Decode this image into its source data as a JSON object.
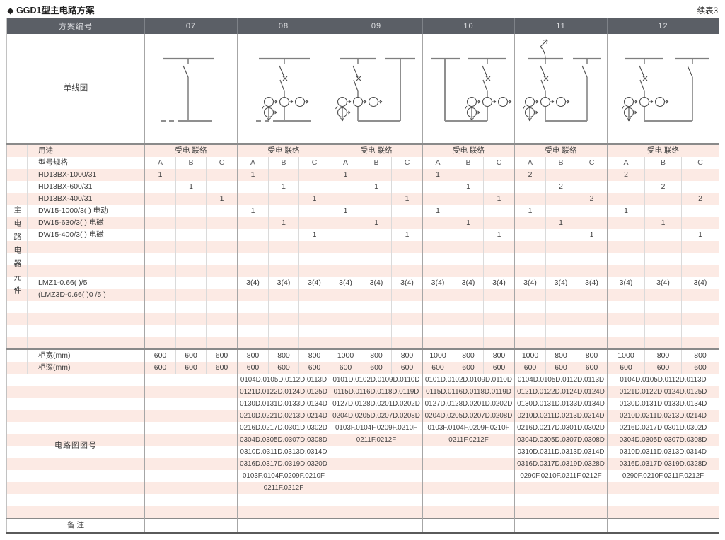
{
  "page": {
    "title": "◆ GGD1型主电路方案",
    "continuation": "续表3"
  },
  "colors": {
    "band": "#fceae4",
    "header_bg": "#5b5f66",
    "rule": "#8a8a8a"
  },
  "header": {
    "scheme_label": "方案编号",
    "schemes": [
      "07",
      "08",
      "09",
      "10",
      "11",
      "12"
    ]
  },
  "diagram_row": {
    "label": "单线图"
  },
  "usage_row": {
    "label": "用途",
    "value": "受电 联络"
  },
  "spec_row": {
    "label": "型号规格",
    "sub_columns": [
      "A",
      "B",
      "C"
    ]
  },
  "side_label": "主电路电器元件",
  "component_rows": [
    {
      "label": "HD13BX-1000/31",
      "values": [
        "1",
        "",
        "",
        "1",
        "",
        "",
        "1",
        "",
        "",
        "1",
        "",
        "",
        "2",
        "",
        "",
        "2",
        "",
        ""
      ]
    },
    {
      "label": "HD13BX-600/31",
      "values": [
        "",
        "1",
        "",
        "",
        "1",
        "",
        "",
        "1",
        "",
        "",
        "1",
        "",
        "",
        "2",
        "",
        "",
        "2",
        ""
      ]
    },
    {
      "label": "HD13BX-400/31",
      "values": [
        "",
        "",
        "1",
        "",
        "",
        "1",
        "",
        "",
        "1",
        "",
        "",
        "1",
        "",
        "",
        "2",
        "",
        "",
        "2"
      ]
    },
    {
      "label": "DW15-1000/3( )  电动",
      "values": [
        "",
        "",
        "",
        "1",
        "",
        "",
        "1",
        "",
        "",
        "1",
        "",
        "",
        "1",
        "",
        "",
        "1",
        "",
        ""
      ]
    },
    {
      "label": "DW15-630/3( )  电磁",
      "values": [
        "",
        "",
        "",
        "",
        "1",
        "",
        "",
        "1",
        "",
        "",
        "1",
        "",
        "",
        "1",
        "",
        "",
        "1",
        ""
      ]
    },
    {
      "label": "DW15-400/3( )  电磁",
      "values": [
        "",
        "",
        "",
        "",
        "",
        "1",
        "",
        "",
        "1",
        "",
        "",
        "1",
        "",
        "",
        "1",
        "",
        "",
        "1"
      ]
    },
    {
      "label": "",
      "values": []
    },
    {
      "label": "",
      "values": []
    },
    {
      "label": "",
      "values": []
    },
    {
      "label": "LMZ1-0.66( )/5",
      "values": [
        "",
        "",
        "",
        "3(4)",
        "3(4)",
        "3(4)",
        "3(4)",
        "3(4)",
        "3(4)",
        "3(4)",
        "3(4)",
        "3(4)",
        "3(4)",
        "3(4)",
        "3(4)",
        "3(4)",
        "3(4)",
        "3(4)"
      ]
    },
    {
      "label": "(LMZ3D-0.66( )0 /5 )",
      "values": []
    },
    {
      "label": "",
      "values": []
    },
    {
      "label": "",
      "values": []
    },
    {
      "label": "",
      "values": []
    },
    {
      "label": "",
      "values": []
    }
  ],
  "cabinet_rows": [
    {
      "label": "柜宽(mm)",
      "values": [
        "600",
        "600",
        "600",
        "800",
        "800",
        "800",
        "1000",
        "800",
        "800",
        "1000",
        "800",
        "800",
        "1000",
        "800",
        "800",
        "1000",
        "800",
        "800"
      ]
    },
    {
      "label": "柜深(mm)",
      "values": [
        "600",
        "600",
        "600",
        "600",
        "600",
        "600",
        "600",
        "600",
        "600",
        "600",
        "600",
        "600",
        "600",
        "600",
        "600",
        "600",
        "600",
        "600"
      ]
    }
  ],
  "diagram_numbers": {
    "label": "电路图图号",
    "schemes": {
      "07": [],
      "08": [
        "0104D.0105D.0112D.0113D",
        "0121D.0122D.0124D.0125D",
        "0130D.0131D.0133D.0134D",
        "0210D.0221D.0213D.0214D",
        "0216D.0217D.0301D.0302D",
        "0304D.0305D.0307D.0308D",
        "0310D.0311D.0313D.0314D",
        "0316D.0317D.0319D.0320D",
        "0103F.0104F.0209F.0210F",
        "0211F.0212F"
      ],
      "09": [
        "0101D.0102D.0109D.0110D",
        "0115D.0116D.0118D.0119D",
        "0127D.0128D.0201D.0202D",
        "0204D.0205D.0207D.0208D",
        "0103F.0104F.0209F.0210F",
        "0211F.0212F"
      ],
      "10": [
        "0101D.0102D.0109D.0110D",
        "0115D.0116D.0118D.0119D",
        "0127D.0128D.0201D.0202D",
        "0204D.0205D.0207D.0208D",
        "0103F.0104F.0209F.0210F",
        "0211F.0212F"
      ],
      "11": [
        "0104D.0105D.0112D.0113D",
        "0121D.0122D.0124D.0124D",
        "0130D.0131D.0133D.0134D",
        "0210D.0211D.0213D.0214D",
        "0216D.0217D.0301D.0302D",
        "0304D.0305D.0307D.0308D",
        "0310D.0311D.0313D.0314D",
        "0316D.0317D.0319D.0328D",
        "0290F.0210F.0211F.0212F"
      ],
      "12": [
        "0104D.0105D.0112D.0113D",
        "0121D.0122D.0124D.0125D",
        "0130D.0131D.0133D.0134D",
        "0210D.0211D.0213D.0214D",
        "0216D.0217D.0301D.0302D",
        "0304D.0305D.0307D.0308D",
        "0310D.0311D.0313D.0314D",
        "0316D.0317D.0319D.0328D",
        "0290F.0210F.0211F.0212F"
      ]
    }
  },
  "remarks_row": {
    "label": "备 注"
  }
}
